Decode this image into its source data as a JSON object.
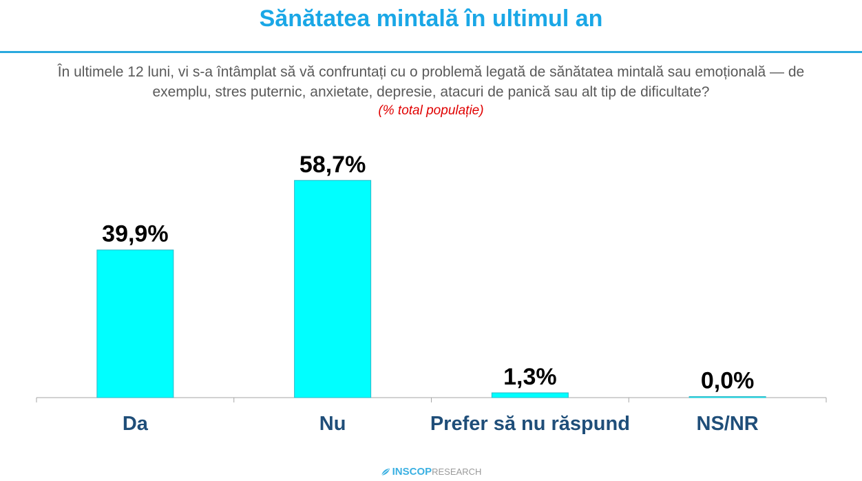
{
  "header": {
    "title": "Sănătatea mintală în ultimul an",
    "question": "În ultimele 12 luni, vi s-a întâmplat să vă confruntați cu o problemă legată de sănătatea mintală sau emoțională — de exemplu, stres puternic, anxietate, depresie, atacuri de panică sau alt tip de dificultate?",
    "unit_note": "(% total populație)"
  },
  "chart_data": {
    "type": "bar",
    "categories": [
      "Da",
      "Nu",
      "Prefer să nu răspund",
      "NS/NR"
    ],
    "values": [
      39.9,
      58.7,
      1.3,
      0.0
    ],
    "data_labels": [
      "39,9%",
      "58,7%",
      "1,3%",
      "0,0%"
    ],
    "ylim": [
      0,
      70
    ],
    "grid": false,
    "legend": "none"
  },
  "colors": {
    "bar_fill": "#00ffff",
    "bar_stroke": "#2fb7c7",
    "title": "#1aa7e6",
    "category_label": "#1f4e79",
    "value_label": "#000000",
    "axis": "#a6a6a6"
  },
  "footer": {
    "brand": "INSCOP",
    "brand_suffix": "RESEARCH",
    "logo_icon": "inscop-leaf-icon"
  }
}
